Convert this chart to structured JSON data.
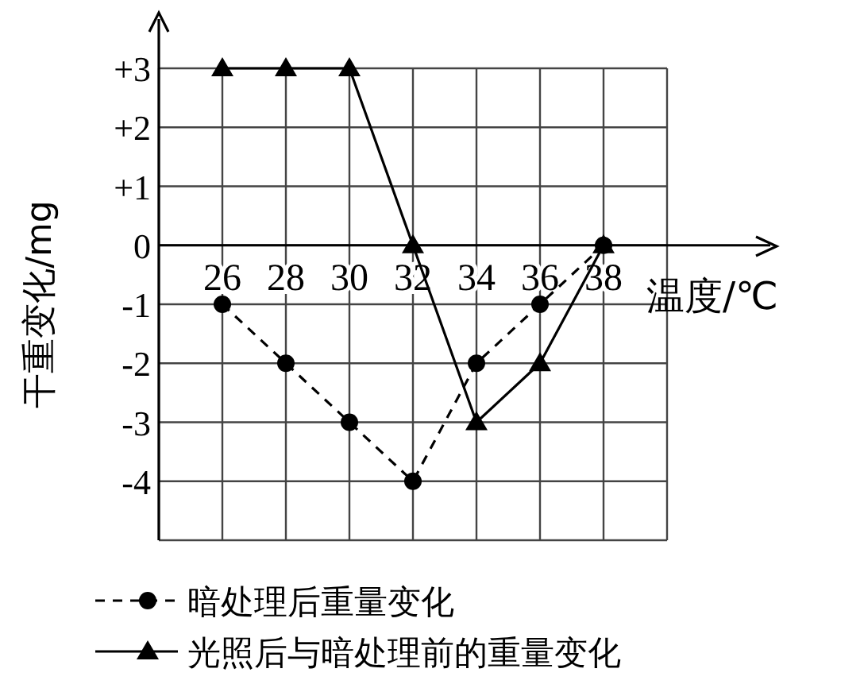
{
  "chart_data": {
    "type": "line",
    "xlabel": "温度/℃",
    "ylabel": "干重变化/mg",
    "x": [
      26,
      28,
      30,
      32,
      34,
      36,
      38
    ],
    "series": [
      {
        "name": "暗处理后重量变化",
        "color": "#000000",
        "values": [
          -1,
          -2,
          -3,
          -4,
          -2,
          -1,
          0
        ],
        "marker": "circle",
        "line_style": "dashed"
      },
      {
        "name": "光照后与暗处理前的重量变化",
        "color": "#000000",
        "values": [
          3,
          3,
          3,
          0,
          -3,
          -2,
          0
        ],
        "marker": "triangle",
        "line_style": "solid"
      }
    ],
    "xlim": [
      24,
      40
    ],
    "xticks": [
      {
        "value": 24,
        "label": null
      },
      26,
      28,
      30,
      32,
      34,
      36,
      38,
      {
        "value": 40,
        "label": null
      }
    ],
    "ylim": [
      -5,
      3
    ],
    "yticks": [
      {
        "value": -5,
        "label": null
      },
      -4,
      -3,
      -2,
      -1,
      0,
      {
        "value": 1,
        "label": "+1"
      },
      {
        "value": 2,
        "label": "+2"
      },
      {
        "value": 3,
        "label": "+3"
      }
    ],
    "grid": true,
    "legend": "bottom left"
  }
}
